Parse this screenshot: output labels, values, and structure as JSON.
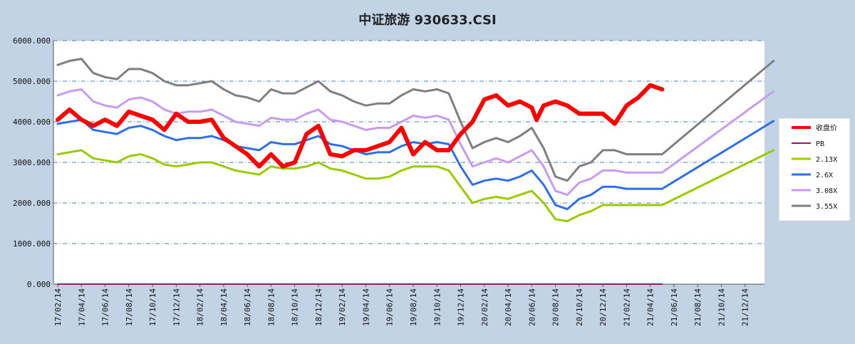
{
  "chart_data": {
    "type": "line",
    "title": "中证旅游 930633.CSI",
    "xlabel": "",
    "ylabel": "",
    "ylim": [
      0,
      6000
    ],
    "y_ticks": [
      "0.000",
      "1000.000",
      "2000.000",
      "3000.000",
      "4000.000",
      "5000.000",
      "6000.000"
    ],
    "x_ticks": [
      "17/02/14",
      "17/04/14",
      "17/06/14",
      "17/08/14",
      "17/10/14",
      "17/12/14",
      "18/02/14",
      "18/04/14",
      "18/06/14",
      "18/08/14",
      "18/10/14",
      "18/12/14",
      "19/02/14",
      "19/04/14",
      "19/06/14",
      "19/08/14",
      "19/10/14",
      "19/12/14",
      "20/02/14",
      "20/04/14",
      "20/06/14",
      "20/08/14",
      "20/10/14",
      "20/12/14",
      "21/02/14",
      "21/04/14",
      "21/06/14",
      "21/08/14",
      "21/10/14",
      "21/12/14"
    ],
    "grid": true,
    "legend_position": "right",
    "series": [
      {
        "name": "收盘价",
        "color": "#ff0000",
        "width": 6,
        "x": [
          0,
          0.5,
          1,
          1.5,
          2,
          2.5,
          3,
          3.5,
          4,
          4.5,
          5,
          5.5,
          6,
          6.5,
          7,
          7.5,
          8,
          8.5,
          9,
          9.5,
          10,
          10.5,
          11,
          11.5,
          12,
          12.5,
          13,
          13.5,
          14,
          14.5,
          15,
          15.5,
          16,
          16.5,
          17,
          17.5,
          18,
          18.5,
          19,
          19.5,
          20,
          20.2,
          20.5,
          21,
          21.5,
          22,
          22.5,
          23,
          23.5,
          24,
          24.5,
          25,
          25.5
        ],
        "y": [
          4050,
          4300,
          4050,
          3900,
          4050,
          3900,
          4250,
          4150,
          4050,
          3800,
          4200,
          4000,
          4000,
          4050,
          3600,
          3400,
          3200,
          2900,
          3200,
          2900,
          3000,
          3700,
          3900,
          3200,
          3150,
          3300,
          3300,
          3400,
          3500,
          3850,
          3200,
          3500,
          3300,
          3300,
          3700,
          4000,
          4550,
          4650,
          4400,
          4500,
          4350,
          4050,
          4400,
          4500,
          4400,
          4200,
          4200,
          4200,
          3950,
          4400,
          4600,
          4900,
          4800
        ]
      },
      {
        "name": "PB",
        "color": "#8e1b5a",
        "width": 2,
        "x": [
          0,
          25.5
        ],
        "y": [
          2,
          2
        ]
      },
      {
        "name": "2.13X",
        "color": "#99cc00",
        "width": 3,
        "x": [
          0,
          0.5,
          1,
          1.5,
          2,
          2.5,
          3,
          3.5,
          4,
          4.5,
          5,
          5.5,
          6,
          6.5,
          7,
          7.5,
          8,
          8.5,
          9,
          9.5,
          10,
          10.5,
          11,
          11.5,
          12,
          12.5,
          13,
          13.5,
          14,
          14.5,
          15,
          15.5,
          16,
          16.5,
          17,
          17.5,
          18,
          18.5,
          19,
          19.5,
          20,
          20.5,
          21,
          21.5,
          22,
          22.5,
          23,
          23.5,
          24,
          24.5,
          25,
          25.5,
          30.2
        ],
        "y": [
          3200,
          3250,
          3300,
          3100,
          3050,
          3000,
          3150,
          3200,
          3100,
          2950,
          2900,
          2950,
          3000,
          3000,
          2900,
          2800,
          2750,
          2700,
          2900,
          2850,
          2850,
          2900,
          3000,
          2850,
          2800,
          2700,
          2600,
          2600,
          2650,
          2800,
          2900,
          2900,
          2900,
          2800,
          2400,
          2000,
          2100,
          2150,
          2100,
          2200,
          2300,
          2000,
          1600,
          1550,
          1700,
          1800,
          1950,
          1950,
          1950,
          1950,
          1950,
          1950,
          3300
        ]
      },
      {
        "name": "2.6X",
        "color": "#2e6fe6",
        "width": 3,
        "x": [
          0,
          0.5,
          1,
          1.5,
          2,
          2.5,
          3,
          3.5,
          4,
          4.5,
          5,
          5.5,
          6,
          6.5,
          7,
          7.5,
          8,
          8.5,
          9,
          9.5,
          10,
          10.5,
          11,
          11.5,
          12,
          12.5,
          13,
          13.5,
          14,
          14.5,
          15,
          15.5,
          16,
          16.5,
          17,
          17.5,
          18,
          18.5,
          19,
          19.5,
          20,
          20.5,
          21,
          21.5,
          22,
          22.5,
          23,
          23.5,
          24,
          24.5,
          25,
          25.5,
          30.2
        ],
        "y": [
          3950,
          4000,
          4050,
          3800,
          3750,
          3700,
          3850,
          3900,
          3800,
          3650,
          3550,
          3600,
          3600,
          3650,
          3550,
          3400,
          3350,
          3300,
          3500,
          3450,
          3450,
          3550,
          3650,
          3450,
          3400,
          3300,
          3200,
          3250,
          3250,
          3400,
          3500,
          3450,
          3500,
          3450,
          2900,
          2450,
          2550,
          2600,
          2550,
          2650,
          2800,
          2450,
          1950,
          1850,
          2100,
          2200,
          2400,
          2400,
          2350,
          2350,
          2350,
          2350,
          4020
        ]
      },
      {
        "name": "3.08X",
        "color": "#c89bf0",
        "width": 3,
        "x": [
          0,
          0.5,
          1,
          1.5,
          2,
          2.5,
          3,
          3.5,
          4,
          4.5,
          5,
          5.5,
          6,
          6.5,
          7,
          7.5,
          8,
          8.5,
          9,
          9.5,
          10,
          10.5,
          11,
          11.5,
          12,
          12.5,
          13,
          13.5,
          14,
          14.5,
          15,
          15.5,
          16,
          16.5,
          17,
          17.5,
          18,
          18.5,
          19,
          19.5,
          20,
          20.5,
          21,
          21.5,
          22,
          22.5,
          23,
          23.5,
          24,
          24.5,
          25,
          25.5,
          30.2
        ],
        "y": [
          4650,
          4750,
          4800,
          4500,
          4400,
          4350,
          4550,
          4600,
          4500,
          4300,
          4200,
          4250,
          4250,
          4300,
          4150,
          4000,
          3950,
          3900,
          4100,
          4050,
          4050,
          4200,
          4300,
          4050,
          4000,
          3900,
          3800,
          3850,
          3850,
          4000,
          4150,
          4100,
          4150,
          4050,
          3450,
          2900,
          3000,
          3100,
          3000,
          3150,
          3300,
          2900,
          2300,
          2200,
          2500,
          2600,
          2800,
          2800,
          2750,
          2750,
          2750,
          2750,
          4750
        ]
      },
      {
        "name": "3.55X",
        "color": "#7f7f7f",
        "width": 3,
        "x": [
          0,
          0.5,
          1,
          1.5,
          2,
          2.5,
          3,
          3.5,
          4,
          4.5,
          5,
          5.5,
          6,
          6.5,
          7,
          7.5,
          8,
          8.5,
          9,
          9.5,
          10,
          10.5,
          11,
          11.5,
          12,
          12.5,
          13,
          13.5,
          14,
          14.5,
          15,
          15.5,
          16,
          16.5,
          17,
          17.5,
          18,
          18.5,
          19,
          19.5,
          20,
          20.5,
          21,
          21.5,
          22,
          22.5,
          23,
          23.5,
          24,
          24.5,
          25,
          25.5,
          30.2
        ],
        "y": [
          5400,
          5500,
          5550,
          5200,
          5100,
          5050,
          5300,
          5300,
          5200,
          5000,
          4900,
          4900,
          4950,
          5000,
          4800,
          4650,
          4600,
          4500,
          4800,
          4700,
          4700,
          4850,
          5000,
          4750,
          4650,
          4500,
          4400,
          4450,
          4450,
          4650,
          4800,
          4750,
          4800,
          4700,
          4000,
          3350,
          3500,
          3600,
          3500,
          3650,
          3850,
          3350,
          2650,
          2550,
          2900,
          3000,
          3300,
          3300,
          3200,
          3200,
          3200,
          3200,
          5500
        ]
      }
    ]
  }
}
